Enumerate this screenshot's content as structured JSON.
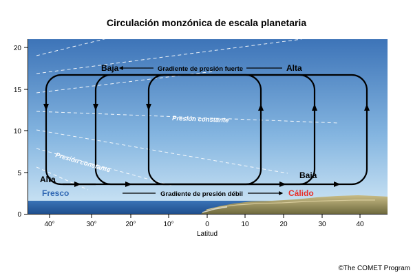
{
  "title": "Circulación monzónica de escala planetaria",
  "axes": {
    "x_label": "Latitud",
    "x_ticks": [
      "40°",
      "30°",
      "20°",
      "10°",
      "0",
      "10",
      "20",
      "30",
      "40"
    ],
    "y_ticks": [
      "0",
      "5",
      "10",
      "15",
      "20"
    ]
  },
  "labels": {
    "baja_top": "Baja",
    "alta_top": "Alta",
    "gradiente_fuerte": "Gradiente de presión fuerte",
    "presion_constante_1": "Presión constante",
    "presion_constante_2": "Presión constante",
    "alta_bottom": "Alta",
    "baja_bottom": "Baja",
    "fresco": "Fresco",
    "calido": "Cálido",
    "gradiente_debil": "Gradiente de presión débil"
  },
  "credit": "©The COMET Program",
  "colors": {
    "sky_top": "#3d74b8",
    "sky_bottom": "#c9e3f4",
    "ocean": "#2a63a8",
    "fresco": "#2f67b3",
    "calido": "#e8302a",
    "land": "#9a8a55"
  }
}
